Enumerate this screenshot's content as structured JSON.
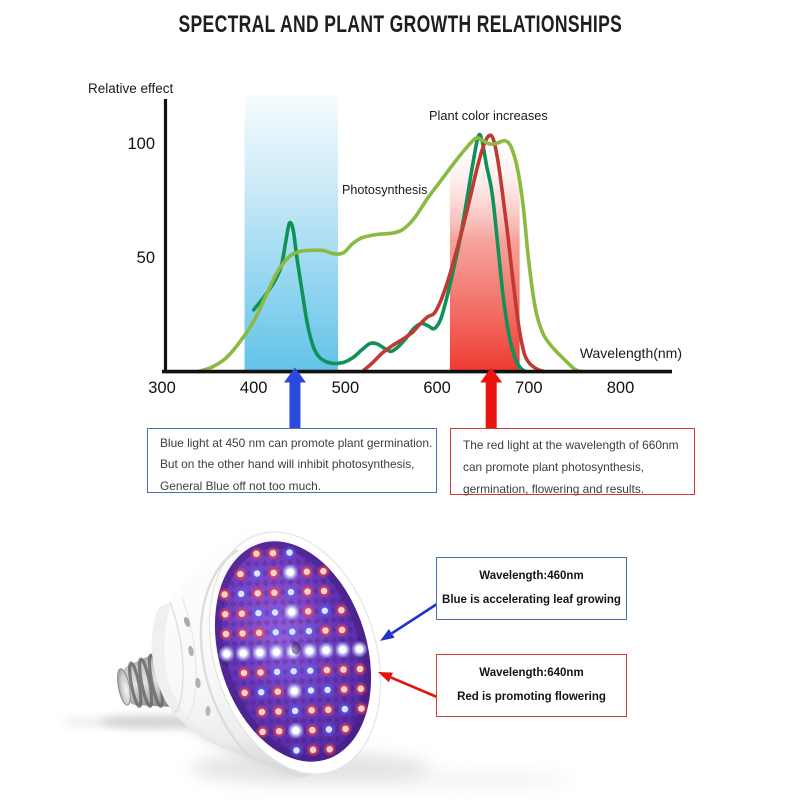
{
  "title": "SPECTRAL AND PLANT GROWTH RELATIONSHIPS",
  "chart": {
    "y_axis_label": "Relative effect",
    "x_axis_label": "Wavelength(nm)",
    "y_ticks": [
      "100",
      "50"
    ],
    "x_ticks": [
      "300",
      "400",
      "500",
      "600",
      "700",
      "800"
    ],
    "annotations": {
      "photosynthesis": "Photosynthesis",
      "plant_color": "Plant color increases"
    }
  },
  "chart_data": {
    "type": "line",
    "title": "SPECTRAL AND PLANT GROWTH RELATIONSHIPS",
    "xlabel": "Wavelength(nm)",
    "ylabel": "Relative effect",
    "xlim": [
      300,
      800
    ],
    "ylim": [
      0,
      119
    ],
    "x_ticks": [
      300,
      400,
      500,
      600,
      700,
      800
    ],
    "y_ticks": [
      50,
      100
    ],
    "grid": false,
    "legend_position": "none",
    "bands": [
      {
        "name": "blue_light_band",
        "x_range": [
          390,
          492
        ],
        "color_bottom": "#62c3e9",
        "color_top": "#f4fbfe"
      },
      {
        "name": "red_light_band",
        "x_range": [
          614,
          690
        ],
        "color_bottom": "#ee3c32",
        "color_top": "#ffffff"
      }
    ],
    "markers": [
      {
        "name": "blue_arrow",
        "x": 445,
        "color": "#2a49dd"
      },
      {
        "name": "red_arrow",
        "x": 659,
        "color": "#ec1410"
      }
    ],
    "series": [
      {
        "name": "Photosynthesis",
        "color": "#8aba40",
        "points": [
          [
            340,
            0
          ],
          [
            355,
            2
          ],
          [
            370,
            6
          ],
          [
            385,
            13
          ],
          [
            400,
            22
          ],
          [
            412,
            32
          ],
          [
            425,
            43
          ],
          [
            438,
            50
          ],
          [
            450,
            52.5
          ],
          [
            462,
            53
          ],
          [
            475,
            53
          ],
          [
            488,
            51.5
          ],
          [
            498,
            52
          ],
          [
            508,
            56
          ],
          [
            518,
            58.5
          ],
          [
            535,
            60
          ],
          [
            550,
            60.5
          ],
          [
            562,
            62
          ],
          [
            575,
            67
          ],
          [
            590,
            76
          ],
          [
            605,
            84
          ],
          [
            618,
            91
          ],
          [
            630,
            97
          ],
          [
            642,
            102
          ],
          [
            650,
            101
          ],
          [
            658,
            99.5
          ],
          [
            666,
            100
          ],
          [
            674,
            101
          ],
          [
            681,
            98
          ],
          [
            688,
            88
          ],
          [
            694,
            72
          ],
          [
            700,
            48
          ],
          [
            707,
            28
          ],
          [
            715,
            17
          ],
          [
            725,
            11
          ],
          [
            737,
            6
          ],
          [
            750,
            1
          ],
          [
            757,
            0
          ]
        ]
      },
      {
        "name": "dark_green_curve",
        "color": "#0e9257",
        "points": [
          [
            400,
            27
          ],
          [
            412,
            33
          ],
          [
            422,
            39
          ],
          [
            430,
            46
          ],
          [
            435,
            57
          ],
          [
            439,
            65
          ],
          [
            443,
            62
          ],
          [
            447,
            50
          ],
          [
            452,
            37
          ],
          [
            458,
            22
          ],
          [
            464,
            12
          ],
          [
            470,
            7
          ],
          [
            478,
            4.5
          ],
          [
            488,
            3.5
          ],
          [
            498,
            4
          ],
          [
            508,
            6
          ],
          [
            518,
            9.5
          ],
          [
            527,
            12.3
          ],
          [
            535,
            12
          ],
          [
            543,
            10
          ],
          [
            550,
            8.8
          ],
          [
            558,
            11
          ],
          [
            566,
            14.5
          ],
          [
            575,
            19
          ],
          [
            583,
            21
          ],
          [
            590,
            20
          ],
          [
            597,
            18.8
          ],
          [
            604,
            23
          ],
          [
            611,
            33
          ],
          [
            618,
            45
          ],
          [
            625,
            58
          ],
          [
            632,
            74
          ],
          [
            639,
            91
          ],
          [
            645,
            103
          ],
          [
            649,
            101
          ],
          [
            654,
            90
          ],
          [
            660,
            78
          ],
          [
            666,
            56
          ],
          [
            672,
            33
          ],
          [
            678,
            17
          ],
          [
            684,
            7
          ],
          [
            690,
            2
          ],
          [
            696,
            0
          ]
        ]
      },
      {
        "name": "dark_red_curve",
        "color": "#bf3a32",
        "points": [
          [
            520,
            0.5
          ],
          [
            530,
            4
          ],
          [
            540,
            8
          ],
          [
            550,
            11
          ],
          [
            558,
            13
          ],
          [
            566,
            15
          ],
          [
            574,
            17.5
          ],
          [
            582,
            21
          ],
          [
            590,
            24
          ],
          [
            597,
            25.5
          ],
          [
            604,
            31
          ],
          [
            612,
            40
          ],
          [
            620,
            51
          ],
          [
            628,
            63
          ],
          [
            636,
            76
          ],
          [
            643,
            88
          ],
          [
            650,
            98
          ],
          [
            656,
            103
          ],
          [
            661,
            102
          ],
          [
            666,
            93
          ],
          [
            671,
            79
          ],
          [
            677,
            60
          ],
          [
            683,
            39
          ],
          [
            689,
            20
          ],
          [
            695,
            8
          ],
          [
            701,
            3.5
          ],
          [
            709,
            1
          ],
          [
            716,
            0
          ]
        ]
      }
    ]
  },
  "info_boxes": {
    "blue": {
      "lines": [
        "Blue light at 450 nm can promote plant germination.",
        "But on the other hand will inhibit photosynthesis,",
        "General Blue off not too much."
      ]
    },
    "red": {
      "lines": [
        "The red light at the wavelength of 660nm",
        "can promote plant photosynthesis,",
        "germination, flowering and results."
      ]
    }
  },
  "callouts": {
    "blue": {
      "line1": "Wavelength:460nm",
      "line2": "Blue is accelerating leaf growing"
    },
    "red": {
      "line1": "Wavelength:640nm",
      "line2": "Red is promoting flowering"
    }
  },
  "colors": {
    "photosynthesis_curve": "#8aba40",
    "dark_green_curve": "#0e9257",
    "dark_red_curve": "#bf3a32",
    "blue_arrow": "#2a49dd",
    "red_arrow": "#ec1410",
    "blue_box_border": "#4a73c2",
    "red_box_border": "#d23b35",
    "led_red": "#ff5a50",
    "led_blue": "#7e8cff",
    "led_white": "#e8efff",
    "callout_blue_arrow": "#2233cc",
    "callout_red_arrow": "#e3120c",
    "panel_purple": "#6a3fc0"
  }
}
